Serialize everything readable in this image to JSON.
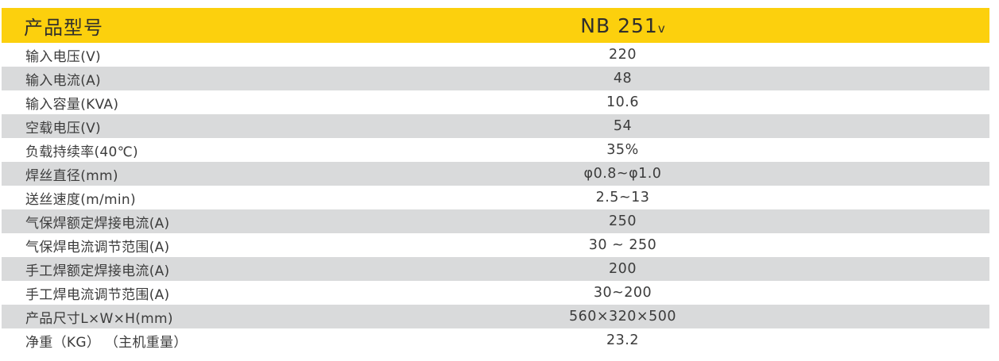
{
  "table": {
    "header": {
      "label": "产品型号",
      "model": "NB 251",
      "model_suffix": "v"
    },
    "rows": [
      {
        "label": "输入电压(V)",
        "value": "220"
      },
      {
        "label": "输入电流(A)",
        "value": "48"
      },
      {
        "label": "输入容量(KVA)",
        "value": "10.6"
      },
      {
        "label": "空载电压(V)",
        "value": "54"
      },
      {
        "label": "负载持续率(40℃)",
        "value": "35%"
      },
      {
        "label": "焊丝直径(mm)",
        "value": "φ0.8~φ1.0"
      },
      {
        "label": "送丝速度(m/min)",
        "value": "2.5~13"
      },
      {
        "label": "气保焊额定焊接电流(A)",
        "value": "250"
      },
      {
        "label": "气保焊电流调节范围(A)",
        "value": "30 ~ 250"
      },
      {
        "label": "手工焊额定焊接电流(A)",
        "value": "200"
      },
      {
        "label": "手工焊电流调节范围(A)",
        "value": "30~200"
      },
      {
        "label": "产品尺寸L×W×H(mm)",
        "value": "560×320×500"
      },
      {
        "label": "净重（KG） （主机重量）",
        "value": "23.2"
      }
    ],
    "colors": {
      "header_bg": "#FCD00D",
      "header_text": "#302F2D",
      "stripe_bg": "#D9DADB",
      "text": "#3C3C3C"
    }
  }
}
